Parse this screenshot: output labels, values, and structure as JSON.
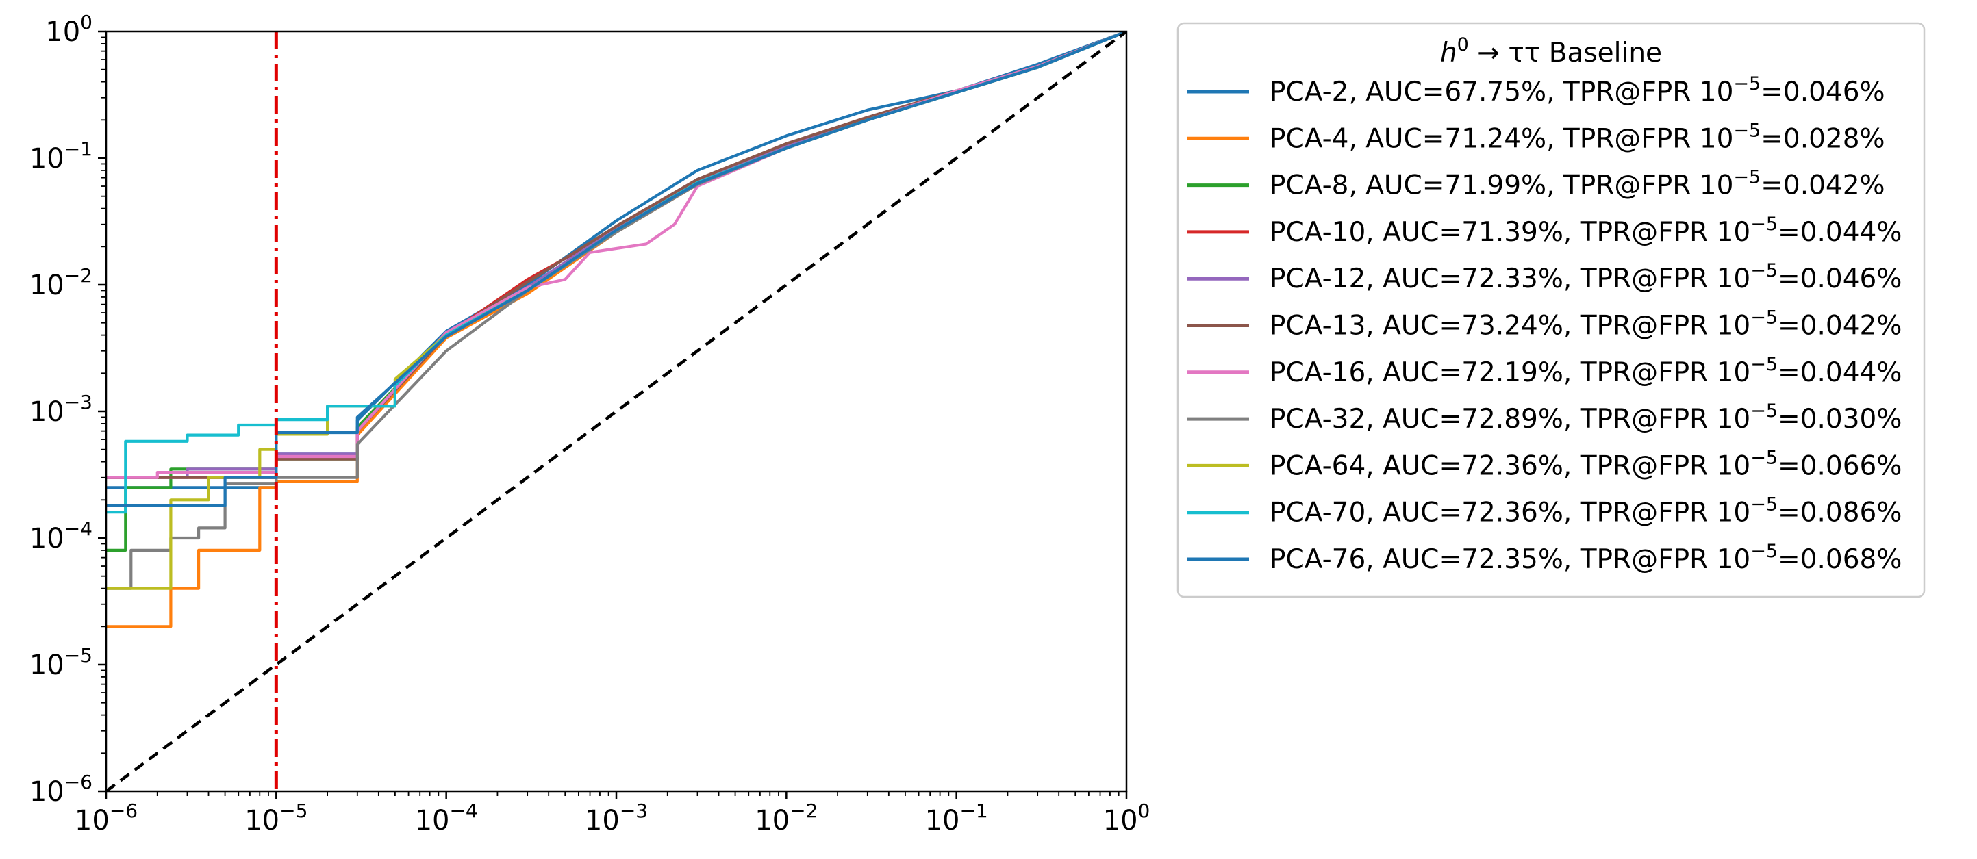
{
  "chart_data": {
    "type": "line",
    "xscale": "log",
    "yscale": "log",
    "xlim": [
      1e-06,
      1
    ],
    "ylim": [
      1e-06,
      1
    ],
    "grid": false,
    "legend_placement": "outside-right-top",
    "xticks": [
      {
        "base": "10",
        "exp": "−6"
      },
      {
        "base": "10",
        "exp": "−5"
      },
      {
        "base": "10",
        "exp": "−4"
      },
      {
        "base": "10",
        "exp": "−3"
      },
      {
        "base": "10",
        "exp": "−2"
      },
      {
        "base": "10",
        "exp": "−1"
      },
      {
        "base": "10",
        "exp": "0"
      }
    ],
    "yticks": [
      {
        "base": "10",
        "exp": "−6"
      },
      {
        "base": "10",
        "exp": "−5"
      },
      {
        "base": "10",
        "exp": "−4"
      },
      {
        "base": "10",
        "exp": "−3"
      },
      {
        "base": "10",
        "exp": "−2"
      },
      {
        "base": "10",
        "exp": "−1"
      },
      {
        "base": "10",
        "exp": "0"
      }
    ],
    "legend_title": {
      "pre": "h",
      "sup": "0",
      "post": " → ττ Baseline"
    },
    "reference_lines": [
      {
        "kind": "diagonal",
        "color": "#000000",
        "style": "dashed"
      },
      {
        "kind": "vertical",
        "x": 1e-05,
        "color": "#e00000",
        "style": "dashdot"
      }
    ],
    "series": [
      {
        "name": "PCA-2, AUC=67.75%, TPR@FPR 10",
        "sup": "−5",
        "tail": "=0.046%",
        "color": "#1f77b4",
        "points": [
          [
            1e-06,
            0.00025
          ],
          [
            1e-05,
            0.00046
          ],
          [
            3e-05,
            0.00085
          ],
          [
            0.0001,
            0.0043
          ],
          [
            0.0003,
            0.01
          ],
          [
            0.001,
            0.032
          ],
          [
            0.003,
            0.08
          ],
          [
            0.01,
            0.15
          ],
          [
            0.03,
            0.24
          ],
          [
            0.1,
            0.34
          ],
          [
            0.3,
            0.55
          ],
          [
            1,
            1
          ]
        ]
      },
      {
        "name": "PCA-4, AUC=71.24%, TPR@FPR 10",
        "sup": "−5",
        "tail": "=0.028%",
        "color": "#ff7f0e",
        "points": [
          [
            1e-06,
            2e-05
          ],
          [
            2.4e-06,
            4e-05
          ],
          [
            3.5e-06,
            8e-05
          ],
          [
            8e-06,
            0.00025
          ],
          [
            1e-05,
            0.00028
          ],
          [
            3e-05,
            0.00065
          ],
          [
            0.0001,
            0.0038
          ],
          [
            0.0003,
            0.0085
          ],
          [
            0.001,
            0.026
          ],
          [
            0.003,
            0.062
          ],
          [
            0.01,
            0.12
          ],
          [
            0.03,
            0.2
          ],
          [
            0.1,
            0.33
          ],
          [
            0.3,
            0.52
          ],
          [
            1,
            1
          ]
        ]
      },
      {
        "name": "PCA-8, AUC=71.99%, TPR@FPR 10",
        "sup": "−5",
        "tail": "=0.042%",
        "color": "#2ca02c",
        "points": [
          [
            1e-06,
            8e-05
          ],
          [
            1.3e-06,
            0.00025
          ],
          [
            2.4e-06,
            0.00035
          ],
          [
            1e-05,
            0.00042
          ],
          [
            3e-05,
            0.00075
          ],
          [
            0.0001,
            0.004
          ],
          [
            0.0003,
            0.009
          ],
          [
            0.001,
            0.028
          ],
          [
            0.003,
            0.066
          ],
          [
            0.01,
            0.125
          ],
          [
            0.03,
            0.2
          ],
          [
            0.1,
            0.34
          ],
          [
            0.3,
            0.53
          ],
          [
            1,
            1
          ]
        ]
      },
      {
        "name": "PCA-10, AUC=71.39%, TPR@FPR 10",
        "sup": "−5",
        "tail": "=0.044%",
        "color": "#d62728",
        "points": [
          [
            1e-06,
            0.0003
          ],
          [
            1e-05,
            0.00044
          ],
          [
            3e-05,
            0.0007
          ],
          [
            0.0001,
            0.004
          ],
          [
            0.0003,
            0.011
          ],
          [
            0.001,
            0.027
          ],
          [
            0.003,
            0.064
          ],
          [
            0.01,
            0.12
          ],
          [
            0.03,
            0.2
          ],
          [
            0.1,
            0.33
          ],
          [
            0.3,
            0.52
          ],
          [
            1,
            1
          ]
        ]
      },
      {
        "name": "PCA-12, AUC=72.33%, TPR@FPR 10",
        "sup": "−5",
        "tail": "=0.046%",
        "color": "#9467bd",
        "points": [
          [
            1e-06,
            0.0003
          ],
          [
            3e-06,
            0.00035
          ],
          [
            1e-05,
            0.00046
          ],
          [
            3e-05,
            0.0007
          ],
          [
            0.0001,
            0.004
          ],
          [
            0.0003,
            0.0095
          ],
          [
            0.001,
            0.028
          ],
          [
            0.003,
            0.066
          ],
          [
            0.01,
            0.125
          ],
          [
            0.03,
            0.2
          ],
          [
            0.1,
            0.34
          ],
          [
            0.3,
            0.53
          ],
          [
            1,
            1
          ]
        ]
      },
      {
        "name": "PCA-13, AUC=73.24%, TPR@FPR 10",
        "sup": "−5",
        "tail": "=0.042%",
        "color": "#8c564b",
        "points": [
          [
            1e-06,
            0.0003
          ],
          [
            1e-05,
            0.00042
          ],
          [
            3e-05,
            0.0007
          ],
          [
            0.0001,
            0.004
          ],
          [
            0.0003,
            0.0105
          ],
          [
            0.001,
            0.029
          ],
          [
            0.003,
            0.068
          ],
          [
            0.01,
            0.13
          ],
          [
            0.03,
            0.21
          ],
          [
            0.1,
            0.34
          ],
          [
            0.3,
            0.53
          ],
          [
            1,
            1
          ]
        ]
      },
      {
        "name": "PCA-16, AUC=72.19%, TPR@FPR 10",
        "sup": "−5",
        "tail": "=0.044%",
        "color": "#e377c2",
        "points": [
          [
            1e-06,
            0.0003
          ],
          [
            2e-06,
            0.00033
          ],
          [
            1e-05,
            0.00044
          ],
          [
            3e-05,
            0.0007
          ],
          [
            0.0001,
            0.0042
          ],
          [
            0.0003,
            0.0095
          ],
          [
            0.0005,
            0.011
          ],
          [
            0.0007,
            0.018
          ],
          [
            0.0015,
            0.021
          ],
          [
            0.0022,
            0.03
          ],
          [
            0.003,
            0.06
          ],
          [
            0.01,
            0.12
          ],
          [
            0.03,
            0.2
          ],
          [
            0.1,
            0.34
          ],
          [
            0.3,
            0.53
          ],
          [
            1,
            1
          ]
        ]
      },
      {
        "name": "PCA-32, AUC=72.89%, TPR@FPR 10",
        "sup": "−5",
        "tail": "=0.030%",
        "color": "#7f7f7f",
        "points": [
          [
            1e-06,
            4e-05
          ],
          [
            1.4e-06,
            8e-05
          ],
          [
            2.4e-06,
            0.0001
          ],
          [
            3.5e-06,
            0.00012
          ],
          [
            5e-06,
            0.00027
          ],
          [
            1e-05,
            0.0003
          ],
          [
            3e-05,
            0.00055
          ],
          [
            0.0001,
            0.003
          ],
          [
            0.0003,
            0.009
          ],
          [
            0.001,
            0.026
          ],
          [
            0.003,
            0.062
          ],
          [
            0.01,
            0.12
          ],
          [
            0.03,
            0.2
          ],
          [
            0.1,
            0.33
          ],
          [
            0.3,
            0.52
          ],
          [
            1,
            1
          ]
        ]
      },
      {
        "name": "PCA-64, AUC=72.36%, TPR@FPR 10",
        "sup": "−5",
        "tail": "=0.066%",
        "color": "#bcbd22",
        "points": [
          [
            1e-06,
            4e-05
          ],
          [
            2.4e-06,
            0.0002
          ],
          [
            4e-06,
            0.0003
          ],
          [
            8e-06,
            0.0005
          ],
          [
            1e-05,
            0.00066
          ],
          [
            2e-05,
            0.0011
          ],
          [
            5e-05,
            0.0018
          ],
          [
            0.0001,
            0.004
          ],
          [
            0.0003,
            0.009
          ],
          [
            0.001,
            0.027
          ],
          [
            0.003,
            0.064
          ],
          [
            0.01,
            0.12
          ],
          [
            0.03,
            0.2
          ],
          [
            0.1,
            0.33
          ],
          [
            0.3,
            0.52
          ],
          [
            1,
            1
          ]
        ]
      },
      {
        "name": "PCA-70, AUC=72.36%, TPR@FPR 10",
        "sup": "−5",
        "tail": "=0.086%",
        "color": "#17becf",
        "points": [
          [
            1e-06,
            0.00016
          ],
          [
            1.3e-06,
            0.00058
          ],
          [
            3e-06,
            0.00065
          ],
          [
            6e-06,
            0.00078
          ],
          [
            1e-05,
            0.00086
          ],
          [
            2e-05,
            0.0011
          ],
          [
            5e-05,
            0.0016
          ],
          [
            0.0001,
            0.004
          ],
          [
            0.0003,
            0.009
          ],
          [
            0.001,
            0.027
          ],
          [
            0.003,
            0.064
          ],
          [
            0.01,
            0.12
          ],
          [
            0.03,
            0.2
          ],
          [
            0.1,
            0.33
          ],
          [
            0.3,
            0.52
          ],
          [
            1,
            1
          ]
        ]
      },
      {
        "name": "PCA-76, AUC=72.35%, TPR@FPR 10",
        "sup": "−5",
        "tail": "=0.068%",
        "color": "#1f77b4",
        "points": [
          [
            1e-06,
            0.00018
          ],
          [
            2.4e-06,
            0.00018
          ],
          [
            5e-06,
            0.0003
          ],
          [
            1e-05,
            0.00068
          ],
          [
            3e-05,
            0.0009
          ],
          [
            0.0001,
            0.0039
          ],
          [
            0.0003,
            0.009
          ],
          [
            0.001,
            0.027
          ],
          [
            0.003,
            0.063
          ],
          [
            0.01,
            0.12
          ],
          [
            0.03,
            0.2
          ],
          [
            0.1,
            0.33
          ],
          [
            0.3,
            0.52
          ],
          [
            1,
            1
          ]
        ]
      }
    ]
  }
}
